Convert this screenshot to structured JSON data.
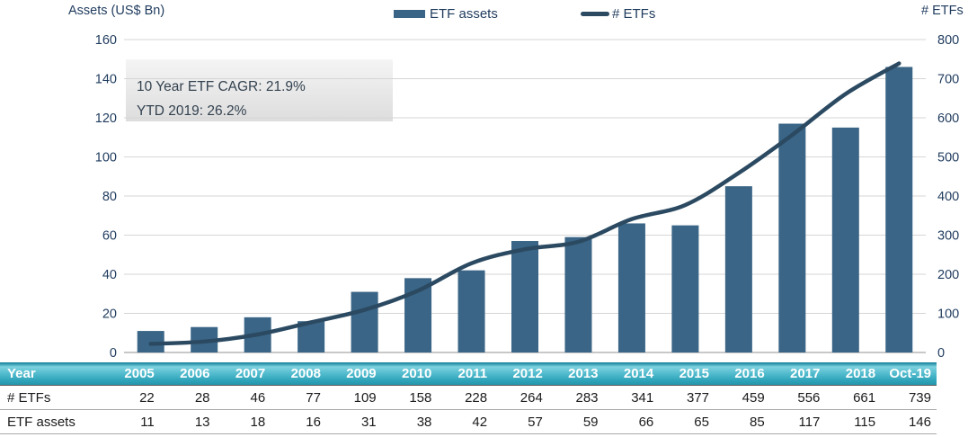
{
  "header": {
    "left_axis_title": "Assets (US$ Bn)",
    "right_axis_title": "# ETFs",
    "legend": [
      {
        "label": "ETF assets",
        "swatch": "bar-swatch",
        "color": "#3a6586"
      },
      {
        "label": "# ETFs",
        "swatch": "line-swatch",
        "color": "#2b4a62"
      }
    ]
  },
  "annotation": {
    "lines": [
      "10 Year ETF CAGR: 21.9%",
      "YTD 2019: 26.2%"
    ]
  },
  "chart_data": {
    "type": "combo",
    "categories": [
      "2005",
      "2006",
      "2007",
      "2008",
      "2009",
      "2010",
      "2011",
      "2012",
      "2013",
      "2014",
      "2015",
      "2016",
      "2017",
      "2018",
      "Oct-19"
    ],
    "series": [
      {
        "name": "ETF assets",
        "type": "bar",
        "axis": "left",
        "color": "#3a6586",
        "values": [
          11,
          13,
          18,
          16,
          31,
          38,
          42,
          57,
          59,
          66,
          65,
          85,
          117,
          115,
          146
        ]
      },
      {
        "name": "# ETFs",
        "type": "line",
        "axis": "right",
        "color": "#2b4a62",
        "values": [
          22,
          28,
          46,
          77,
          109,
          158,
          228,
          264,
          283,
          341,
          377,
          459,
          556,
          661,
          739
        ]
      }
    ],
    "left_axis": {
      "title": "Assets (US$ Bn)",
      "min": 0,
      "max": 160,
      "step": 20
    },
    "right_axis": {
      "title": "# ETFs",
      "min": 0,
      "max": 800,
      "step": 100
    },
    "grid": "horizontal",
    "legend_position": "top",
    "annotation": [
      "10 Year ETF CAGR: 21.9%",
      "YTD 2019: 26.2%"
    ]
  },
  "table": {
    "header_row": [
      "Year",
      "2005",
      "2006",
      "2007",
      "2008",
      "2009",
      "2010",
      "2011",
      "2012",
      "2013",
      "2014",
      "2015",
      "2016",
      "2017",
      "2018",
      "Oct-19"
    ],
    "rows": [
      {
        "label": "# ETFs",
        "values": [
          22,
          28,
          46,
          77,
          109,
          158,
          228,
          264,
          283,
          341,
          377,
          459,
          556,
          661,
          739
        ]
      },
      {
        "label": "ETF assets",
        "values": [
          11,
          13,
          18,
          16,
          31,
          38,
          42,
          57,
          59,
          66,
          65,
          85,
          117,
          115,
          146
        ]
      }
    ]
  },
  "colors": {
    "bar": "#3a6586",
    "line": "#2b4a62",
    "gridline": "#d6d6d6",
    "axis_line": "#a8a8a8",
    "tick_text": "#1f3b5e",
    "table_header_teal_top": "#0f7e97",
    "table_header_teal_light": "#7dd1de",
    "table_header_teal_bottom": "#2596ac",
    "annotation_bg_top": "#f4f4f4",
    "annotation_bg_bottom": "#dddddd"
  }
}
